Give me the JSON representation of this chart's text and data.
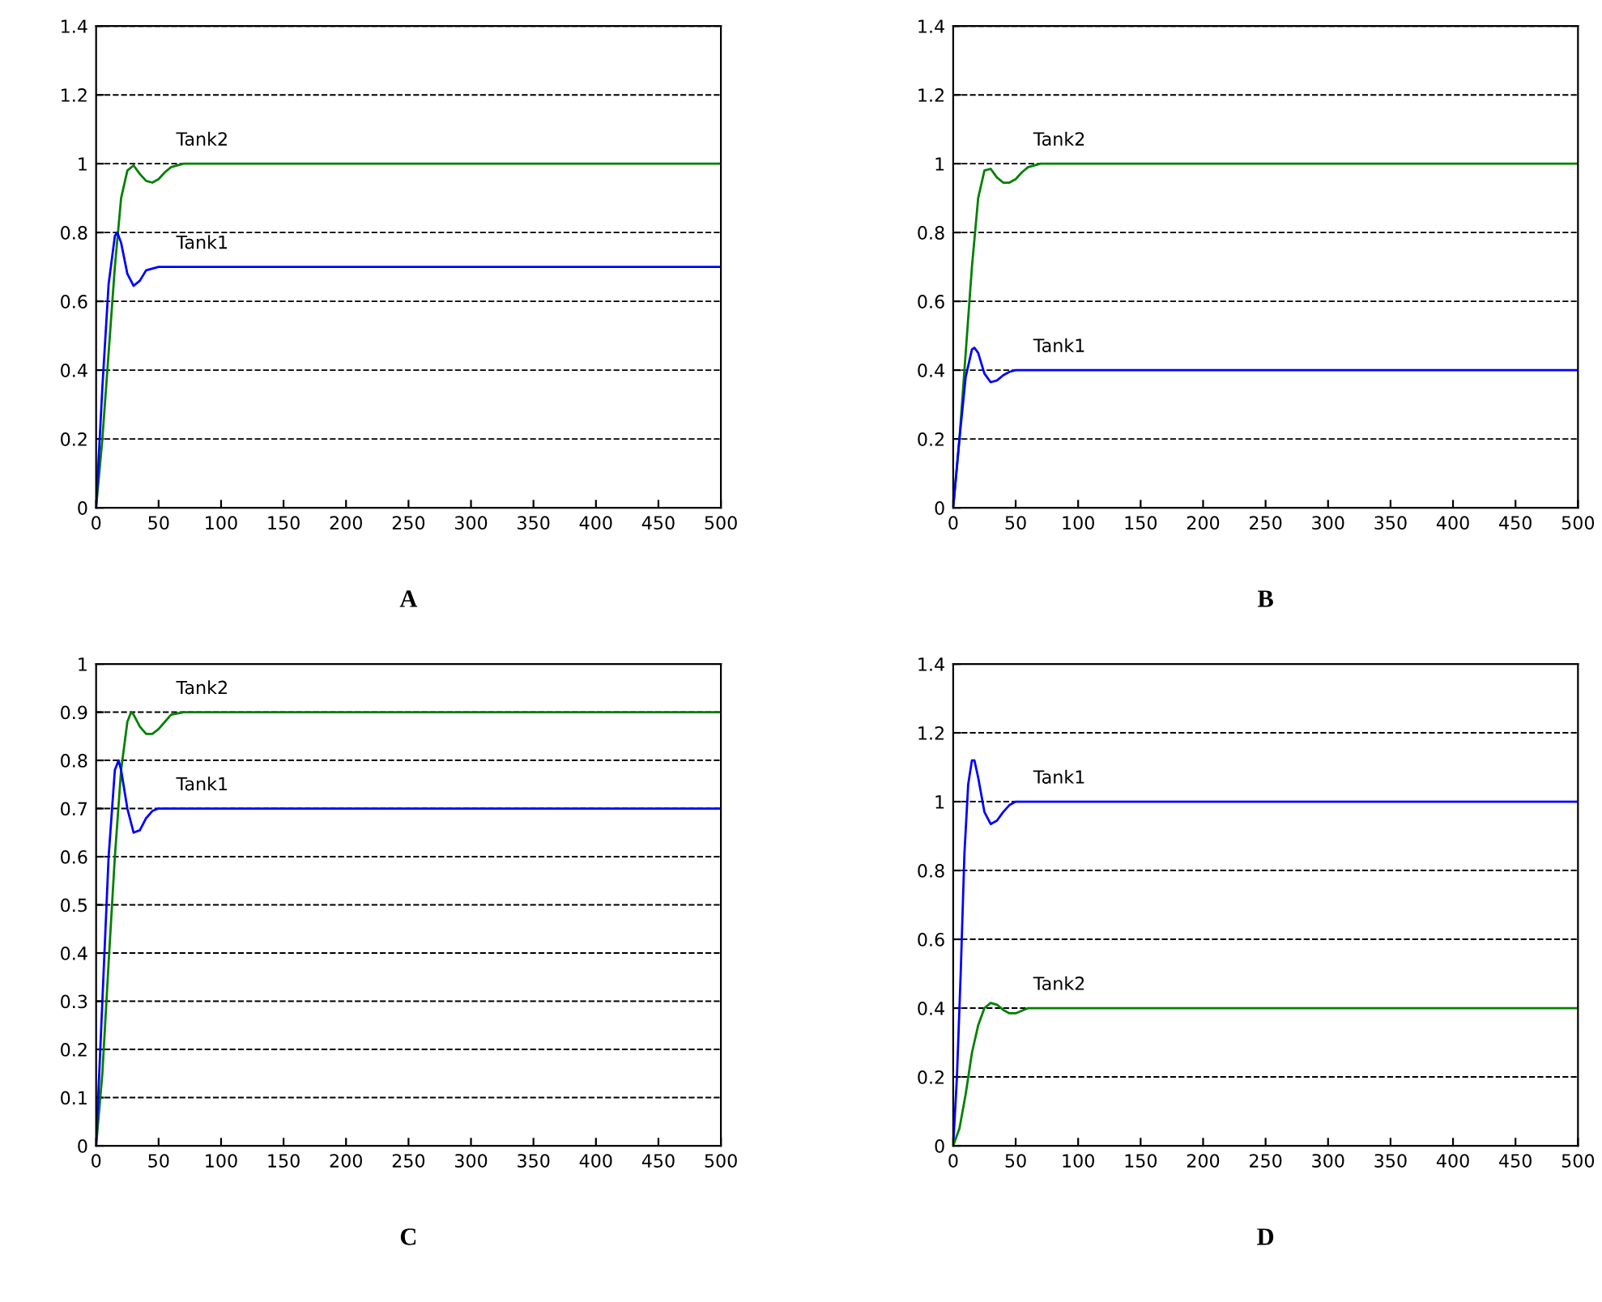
{
  "chart_data": [
    {
      "type": "line",
      "xlim": [
        0,
        500
      ],
      "ylim": [
        0,
        1.4
      ],
      "xticks": [
        0,
        50,
        100,
        150,
        200,
        250,
        300,
        350,
        400,
        450,
        500
      ],
      "yticks": [
        0,
        0.2,
        0.4,
        0.6,
        0.8,
        1,
        1.2,
        1.4
      ],
      "grid": "y",
      "legend": false,
      "annotations": [
        "A"
      ],
      "series": [
        {
          "name": "Tank2",
          "color": "#008000",
          "x": [
            0,
            5,
            10,
            15,
            20,
            25,
            30,
            35,
            40,
            45,
            50,
            55,
            60,
            70,
            100,
            500
          ],
          "values": [
            0,
            0.2,
            0.45,
            0.7,
            0.9,
            0.98,
            0.995,
            0.97,
            0.95,
            0.945,
            0.955,
            0.975,
            0.99,
            1.0,
            1.0,
            1.0
          ]
        },
        {
          "name": "Tank1",
          "color": "#0000ff",
          "x": [
            0,
            5,
            10,
            15,
            17,
            20,
            25,
            30,
            35,
            40,
            50,
            60,
            100,
            500
          ],
          "values": [
            0,
            0.35,
            0.65,
            0.79,
            0.8,
            0.77,
            0.68,
            0.645,
            0.66,
            0.69,
            0.7,
            0.7,
            0.7,
            0.7
          ]
        }
      ]
    },
    {
      "type": "line",
      "xlim": [
        0,
        500
      ],
      "ylim": [
        0,
        1.4
      ],
      "xticks": [
        0,
        50,
        100,
        150,
        200,
        250,
        300,
        350,
        400,
        450,
        500
      ],
      "yticks": [
        0,
        0.2,
        0.4,
        0.6,
        0.8,
        1,
        1.2,
        1.4
      ],
      "grid": "y",
      "legend": false,
      "annotations": [
        "B"
      ],
      "series": [
        {
          "name": "Tank2",
          "color": "#008000",
          "x": [
            0,
            5,
            10,
            15,
            20,
            25,
            30,
            35,
            40,
            45,
            50,
            55,
            60,
            70,
            100,
            500
          ],
          "values": [
            0,
            0.2,
            0.45,
            0.7,
            0.9,
            0.98,
            0.985,
            0.96,
            0.945,
            0.945,
            0.955,
            0.975,
            0.99,
            1.0,
            1.0,
            1.0
          ]
        },
        {
          "name": "Tank1",
          "color": "#0000ff",
          "x": [
            0,
            5,
            10,
            15,
            17,
            20,
            25,
            30,
            35,
            40,
            45,
            50,
            60,
            500
          ],
          "values": [
            0,
            0.2,
            0.38,
            0.46,
            0.465,
            0.45,
            0.39,
            0.365,
            0.37,
            0.385,
            0.395,
            0.4,
            0.4,
            0.4
          ]
        }
      ]
    },
    {
      "type": "line",
      "xlim": [
        0,
        500
      ],
      "ylim": [
        0,
        1
      ],
      "xticks": [
        0,
        50,
        100,
        150,
        200,
        250,
        300,
        350,
        400,
        450,
        500
      ],
      "yticks": [
        0,
        0.1,
        0.2,
        0.3,
        0.4,
        0.5,
        0.6,
        0.7,
        0.8,
        0.9,
        1
      ],
      "grid": "y",
      "legend": false,
      "annotations": [
        "C"
      ],
      "series": [
        {
          "name": "Tank2",
          "color": "#008000",
          "x": [
            0,
            5,
            10,
            15,
            20,
            25,
            28,
            30,
            35,
            40,
            45,
            50,
            55,
            60,
            70,
            100,
            500
          ],
          "values": [
            0,
            0.15,
            0.38,
            0.6,
            0.78,
            0.88,
            0.9,
            0.895,
            0.87,
            0.855,
            0.855,
            0.865,
            0.88,
            0.895,
            0.9,
            0.9,
            0.9
          ]
        },
        {
          "name": "Tank1",
          "color": "#0000ff",
          "x": [
            0,
            5,
            10,
            15,
            18,
            20,
            25,
            30,
            35,
            40,
            45,
            50,
            60,
            100,
            500
          ],
          "values": [
            0,
            0.3,
            0.6,
            0.78,
            0.8,
            0.78,
            0.7,
            0.65,
            0.655,
            0.68,
            0.695,
            0.7,
            0.7,
            0.7,
            0.7
          ]
        }
      ]
    },
    {
      "type": "line",
      "xlim": [
        0,
        500
      ],
      "ylim": [
        0,
        1.4
      ],
      "xticks": [
        0,
        50,
        100,
        150,
        200,
        250,
        300,
        350,
        400,
        450,
        500
      ],
      "yticks": [
        0,
        0.2,
        0.4,
        0.6,
        0.8,
        1,
        1.2,
        1.4
      ],
      "grid": "y",
      "legend": false,
      "annotations": [
        "D"
      ],
      "series": [
        {
          "name": "Tank1",
          "color": "#0000ff",
          "x": [
            0,
            3,
            6,
            9,
            12,
            15,
            17,
            20,
            25,
            30,
            35,
            40,
            45,
            50,
            60,
            500
          ],
          "values": [
            0,
            0.2,
            0.5,
            0.85,
            1.05,
            1.12,
            1.12,
            1.07,
            0.97,
            0.935,
            0.945,
            0.97,
            0.99,
            1.0,
            1.0,
            1.0
          ]
        },
        {
          "name": "Tank2",
          "color": "#008000",
          "x": [
            0,
            5,
            10,
            15,
            20,
            25,
            30,
            35,
            40,
            45,
            50,
            60,
            500
          ],
          "values": [
            0,
            0.05,
            0.15,
            0.27,
            0.35,
            0.4,
            0.415,
            0.41,
            0.395,
            0.385,
            0.385,
            0.4,
            0.4
          ]
        }
      ]
    }
  ]
}
